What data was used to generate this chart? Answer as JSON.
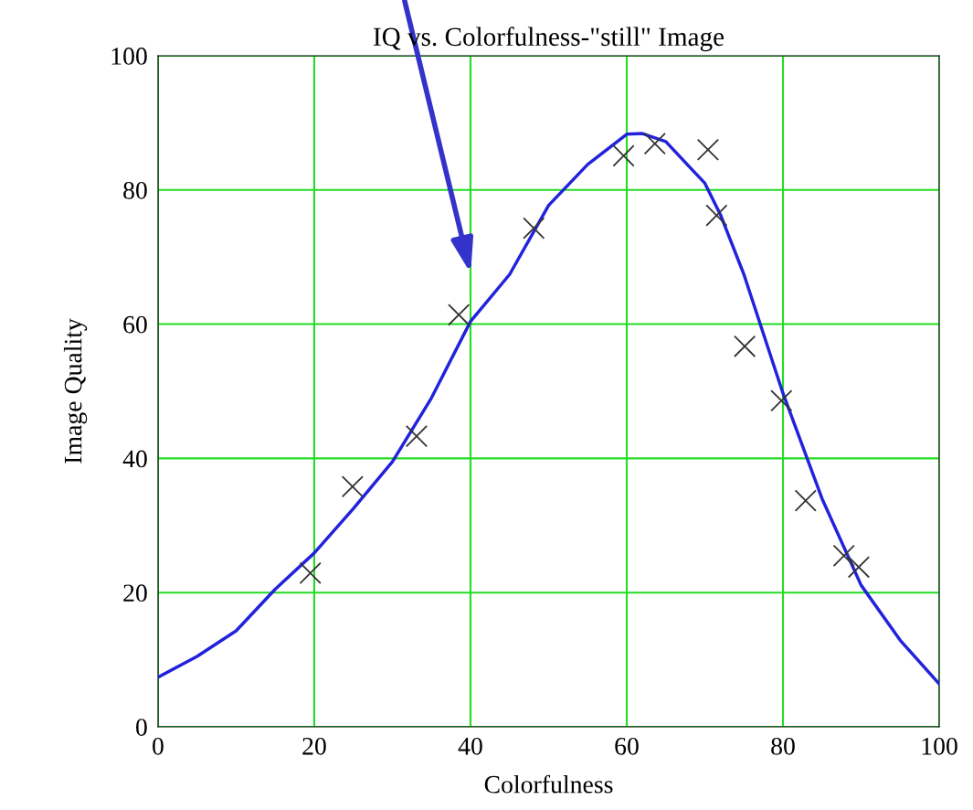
{
  "chart_data": {
    "type": "scatter",
    "title": "IQ vs. Colorfulness-\"still\" Image",
    "xlabel": "Colorfulness",
    "ylabel": "Image Quality",
    "xlim": [
      0,
      100
    ],
    "ylim": [
      0,
      100
    ],
    "xticks": [
      0,
      20,
      40,
      60,
      80,
      100
    ],
    "yticks": [
      0,
      20,
      40,
      60,
      80,
      100
    ],
    "grid": true,
    "legend": false,
    "series": [
      {
        "marker": "cross",
        "color": "#333333",
        "x": [
          19.5,
          24.9,
          33.1,
          38.5,
          48.1,
          59.6,
          63.6,
          70.4,
          71.5,
          75.1,
          79.8,
          82.9,
          87.8,
          89.7
        ],
        "values": [
          22.9,
          35.8,
          43.3,
          61.4,
          74.3,
          85.1,
          86.9,
          86.0,
          76.2,
          56.7,
          48.6,
          33.7,
          25.5,
          23.8
        ]
      },
      {
        "type": "line",
        "marker": "none",
        "line_style": "solid",
        "color": "#2222dd",
        "x": [
          0,
          5,
          10,
          15,
          20,
          25,
          30,
          35,
          40,
          45,
          50,
          55,
          60,
          62,
          65,
          70,
          72,
          75,
          80,
          85,
          90,
          95,
          100
        ],
        "values": [
          7.4,
          10.5,
          14.3,
          20.5,
          25.9,
          32.5,
          39.5,
          49,
          60.4,
          67.4,
          77.7,
          83.8,
          88.3,
          88.4,
          87.2,
          81,
          76.3,
          67.4,
          49.7,
          34,
          21.1,
          12.9,
          6.4
        ]
      }
    ]
  }
}
